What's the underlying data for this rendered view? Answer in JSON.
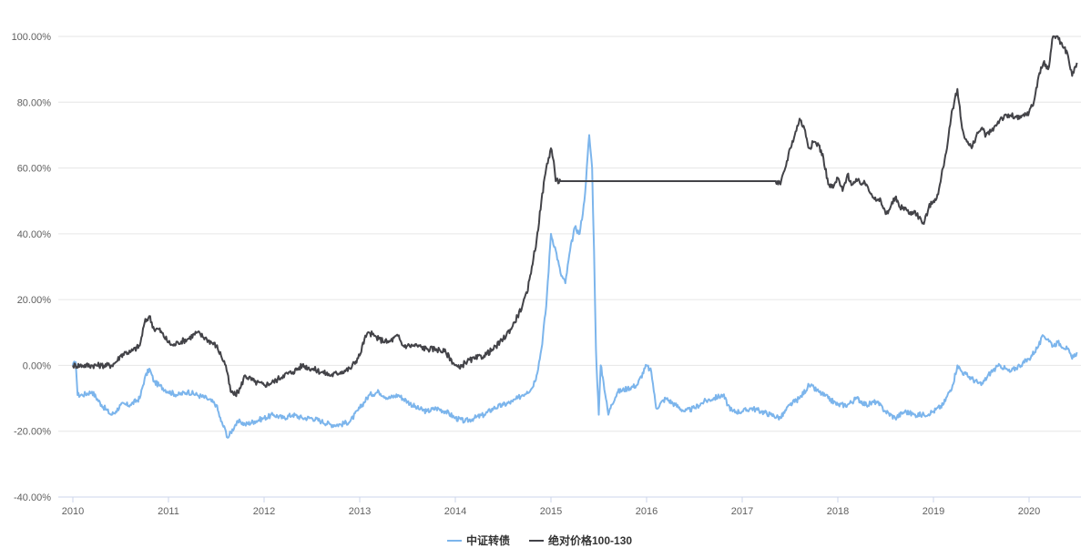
{
  "chart_data": {
    "type": "line",
    "title": "",
    "xlabel": "",
    "ylabel": "",
    "x_ticks": [
      "2010",
      "2011",
      "2012",
      "2013",
      "2014",
      "2015",
      "2016",
      "2017",
      "2018",
      "2019",
      "2020"
    ],
    "x_range": [
      2010.0,
      2020.5
    ],
    "y_ticks": [
      "-40.00%",
      "-20.00%",
      "0.00%",
      "20.00%",
      "40.00%",
      "60.00%",
      "80.00%",
      "100.00%"
    ],
    "ylim": [
      -40,
      100
    ],
    "grid": "horizontal",
    "legend_position": "bottom-center",
    "series": [
      {
        "name": "中证转债",
        "color": "#7cb5ec",
        "x": [
          2010.0,
          2010.03,
          2010.05,
          2010.1,
          2010.2,
          2010.3,
          2010.4,
          2010.45,
          2010.5,
          2010.6,
          2010.7,
          2010.75,
          2010.8,
          2010.85,
          2010.9,
          2011.0,
          2011.1,
          2011.2,
          2011.3,
          2011.4,
          2011.5,
          2011.55,
          2011.6,
          2011.62,
          2011.7,
          2011.75,
          2011.8,
          2011.9,
          2012.0,
          2012.1,
          2012.2,
          2012.3,
          2012.4,
          2012.5,
          2012.6,
          2012.7,
          2012.8,
          2012.9,
          2013.0,
          2013.1,
          2013.2,
          2013.3,
          2013.4,
          2013.5,
          2013.6,
          2013.7,
          2013.8,
          2013.9,
          2014.0,
          2014.1,
          2014.2,
          2014.3,
          2014.4,
          2014.5,
          2014.6,
          2014.65,
          2014.7,
          2014.75,
          2014.8,
          2014.85,
          2014.9,
          2014.95,
          2015.0,
          2015.05,
          2015.1,
          2015.15,
          2015.2,
          2015.25,
          2015.3,
          2015.35,
          2015.4,
          2015.43,
          2015.45,
          2015.47,
          2015.5,
          2015.52,
          2015.55,
          2015.6,
          2015.63,
          2015.7,
          2015.8,
          2015.9,
          2016.0,
          2016.05,
          2016.1,
          2016.2,
          2016.3,
          2016.4,
          2016.5,
          2016.6,
          2016.7,
          2016.8,
          2016.85,
          2016.9,
          2017.0,
          2017.1,
          2017.2,
          2017.3,
          2017.4,
          2017.5,
          2017.6,
          2017.7,
          2017.8,
          2017.9,
          2018.0,
          2018.1,
          2018.2,
          2018.3,
          2018.4,
          2018.5,
          2018.6,
          2018.7,
          2018.8,
          2018.9,
          2019.0,
          2019.1,
          2019.2,
          2019.25,
          2019.3,
          2019.4,
          2019.5,
          2019.6,
          2019.7,
          2019.8,
          2019.9,
          2020.0,
          2020.1,
          2020.15,
          2020.2,
          2020.25,
          2020.3,
          2020.4,
          2020.45,
          2020.5
        ],
        "values": [
          0,
          1,
          -9,
          -9,
          -8,
          -12,
          -15,
          -14,
          -12,
          -12,
          -10,
          -4,
          -1,
          -5,
          -6,
          -8,
          -9,
          -8,
          -9,
          -10,
          -12,
          -17,
          -20,
          -22,
          -18,
          -17,
          -18,
          -17,
          -16,
          -15,
          -16,
          -15,
          -16,
          -16,
          -17,
          -18,
          -18,
          -17,
          -13,
          -9,
          -8,
          -10,
          -9,
          -11,
          -13,
          -14,
          -13,
          -14,
          -16,
          -17,
          -16,
          -15,
          -13,
          -12,
          -11,
          -10,
          -9,
          -8,
          -7,
          -3,
          5,
          18,
          40,
          35,
          28,
          25,
          35,
          42,
          40,
          50,
          70,
          60,
          35,
          5,
          -15,
          0,
          -5,
          -15,
          -12,
          -8,
          -7,
          -6,
          0,
          -2,
          -13,
          -10,
          -12,
          -14,
          -13,
          -11,
          -10,
          -9,
          -12,
          -14,
          -14,
          -13,
          -14,
          -15,
          -16,
          -12,
          -10,
          -6,
          -8,
          -10,
          -12,
          -12,
          -10,
          -12,
          -11,
          -14,
          -16,
          -14,
          -15,
          -15,
          -14,
          -12,
          -6,
          0,
          -2,
          -4,
          -6,
          -2,
          0,
          -2,
          0,
          2,
          6,
          9,
          8,
          6,
          7,
          5,
          2,
          4
        ]
      },
      {
        "name": "绝对价格100-130",
        "color": "#434348",
        "x": [
          2010.0,
          2010.1,
          2010.2,
          2010.3,
          2010.4,
          2010.45,
          2010.5,
          2010.55,
          2010.6,
          2010.7,
          2010.75,
          2010.8,
          2010.85,
          2010.9,
          2011.0,
          2011.05,
          2011.1,
          2011.2,
          2011.3,
          2011.4,
          2011.5,
          2011.55,
          2011.6,
          2011.65,
          2011.7,
          2011.75,
          2011.8,
          2011.9,
          2012.0,
          2012.1,
          2012.2,
          2012.3,
          2012.4,
          2012.5,
          2012.6,
          2012.7,
          2012.8,
          2012.9,
          2013.0,
          2013.05,
          2013.1,
          2013.15,
          2013.2,
          2013.3,
          2013.4,
          2013.45,
          2013.5,
          2013.6,
          2013.7,
          2013.8,
          2013.9,
          2014.0,
          2014.05,
          2014.1,
          2014.2,
          2014.3,
          2014.4,
          2014.5,
          2014.6,
          2014.65,
          2014.7,
          2014.75,
          2014.8,
          2014.85,
          2014.9,
          2014.95,
          2015.0,
          2015.03,
          2015.05,
          2015.1,
          2015.5,
          2016.0,
          2016.5,
          2017.0,
          2017.35,
          2017.4,
          2017.45,
          2017.5,
          2017.55,
          2017.6,
          2017.65,
          2017.7,
          2017.75,
          2017.8,
          2017.85,
          2017.9,
          2017.95,
          2018.0,
          2018.05,
          2018.1,
          2018.15,
          2018.2,
          2018.3,
          2018.4,
          2018.45,
          2018.5,
          2018.55,
          2018.6,
          2018.65,
          2018.7,
          2018.75,
          2018.8,
          2018.85,
          2018.9,
          2018.95,
          2019.0,
          2019.05,
          2019.1,
          2019.15,
          2019.2,
          2019.25,
          2019.3,
          2019.35,
          2019.4,
          2019.45,
          2019.5,
          2019.55,
          2019.6,
          2019.7,
          2019.8,
          2019.9,
          2020.0,
          2020.05,
          2020.1,
          2020.15,
          2020.2,
          2020.25,
          2020.3,
          2020.35,
          2020.4,
          2020.45,
          2020.5
        ],
        "values": [
          0,
          0,
          0,
          0,
          0,
          1,
          3,
          4,
          4,
          6,
          13,
          15,
          11,
          11,
          7,
          6,
          7,
          8,
          10,
          8,
          6,
          3,
          0,
          -8,
          -9,
          -7,
          -3,
          -5,
          -6,
          -5,
          -3,
          -2,
          0,
          -1,
          -2,
          -3,
          -2,
          -1,
          3,
          8,
          10,
          9,
          8,
          7,
          9,
          6,
          6,
          6,
          5,
          5,
          4,
          0,
          -1,
          1,
          2,
          3,
          5,
          8,
          12,
          15,
          18,
          22,
          30,
          38,
          50,
          60,
          66,
          62,
          56,
          56,
          56,
          56,
          56,
          56,
          56,
          55,
          60,
          66,
          70,
          75,
          72,
          66,
          68,
          67,
          63,
          55,
          54,
          57,
          53,
          58,
          55,
          56,
          55,
          50,
          50,
          46,
          48,
          51,
          48,
          48,
          46,
          47,
          45,
          43,
          48,
          50,
          52,
          60,
          68,
          78,
          84,
          72,
          68,
          66,
          70,
          72,
          70,
          71,
          75,
          76,
          75,
          77,
          80,
          88,
          92,
          90,
          100,
          100,
          97,
          95,
          88,
          92
        ]
      }
    ]
  }
}
